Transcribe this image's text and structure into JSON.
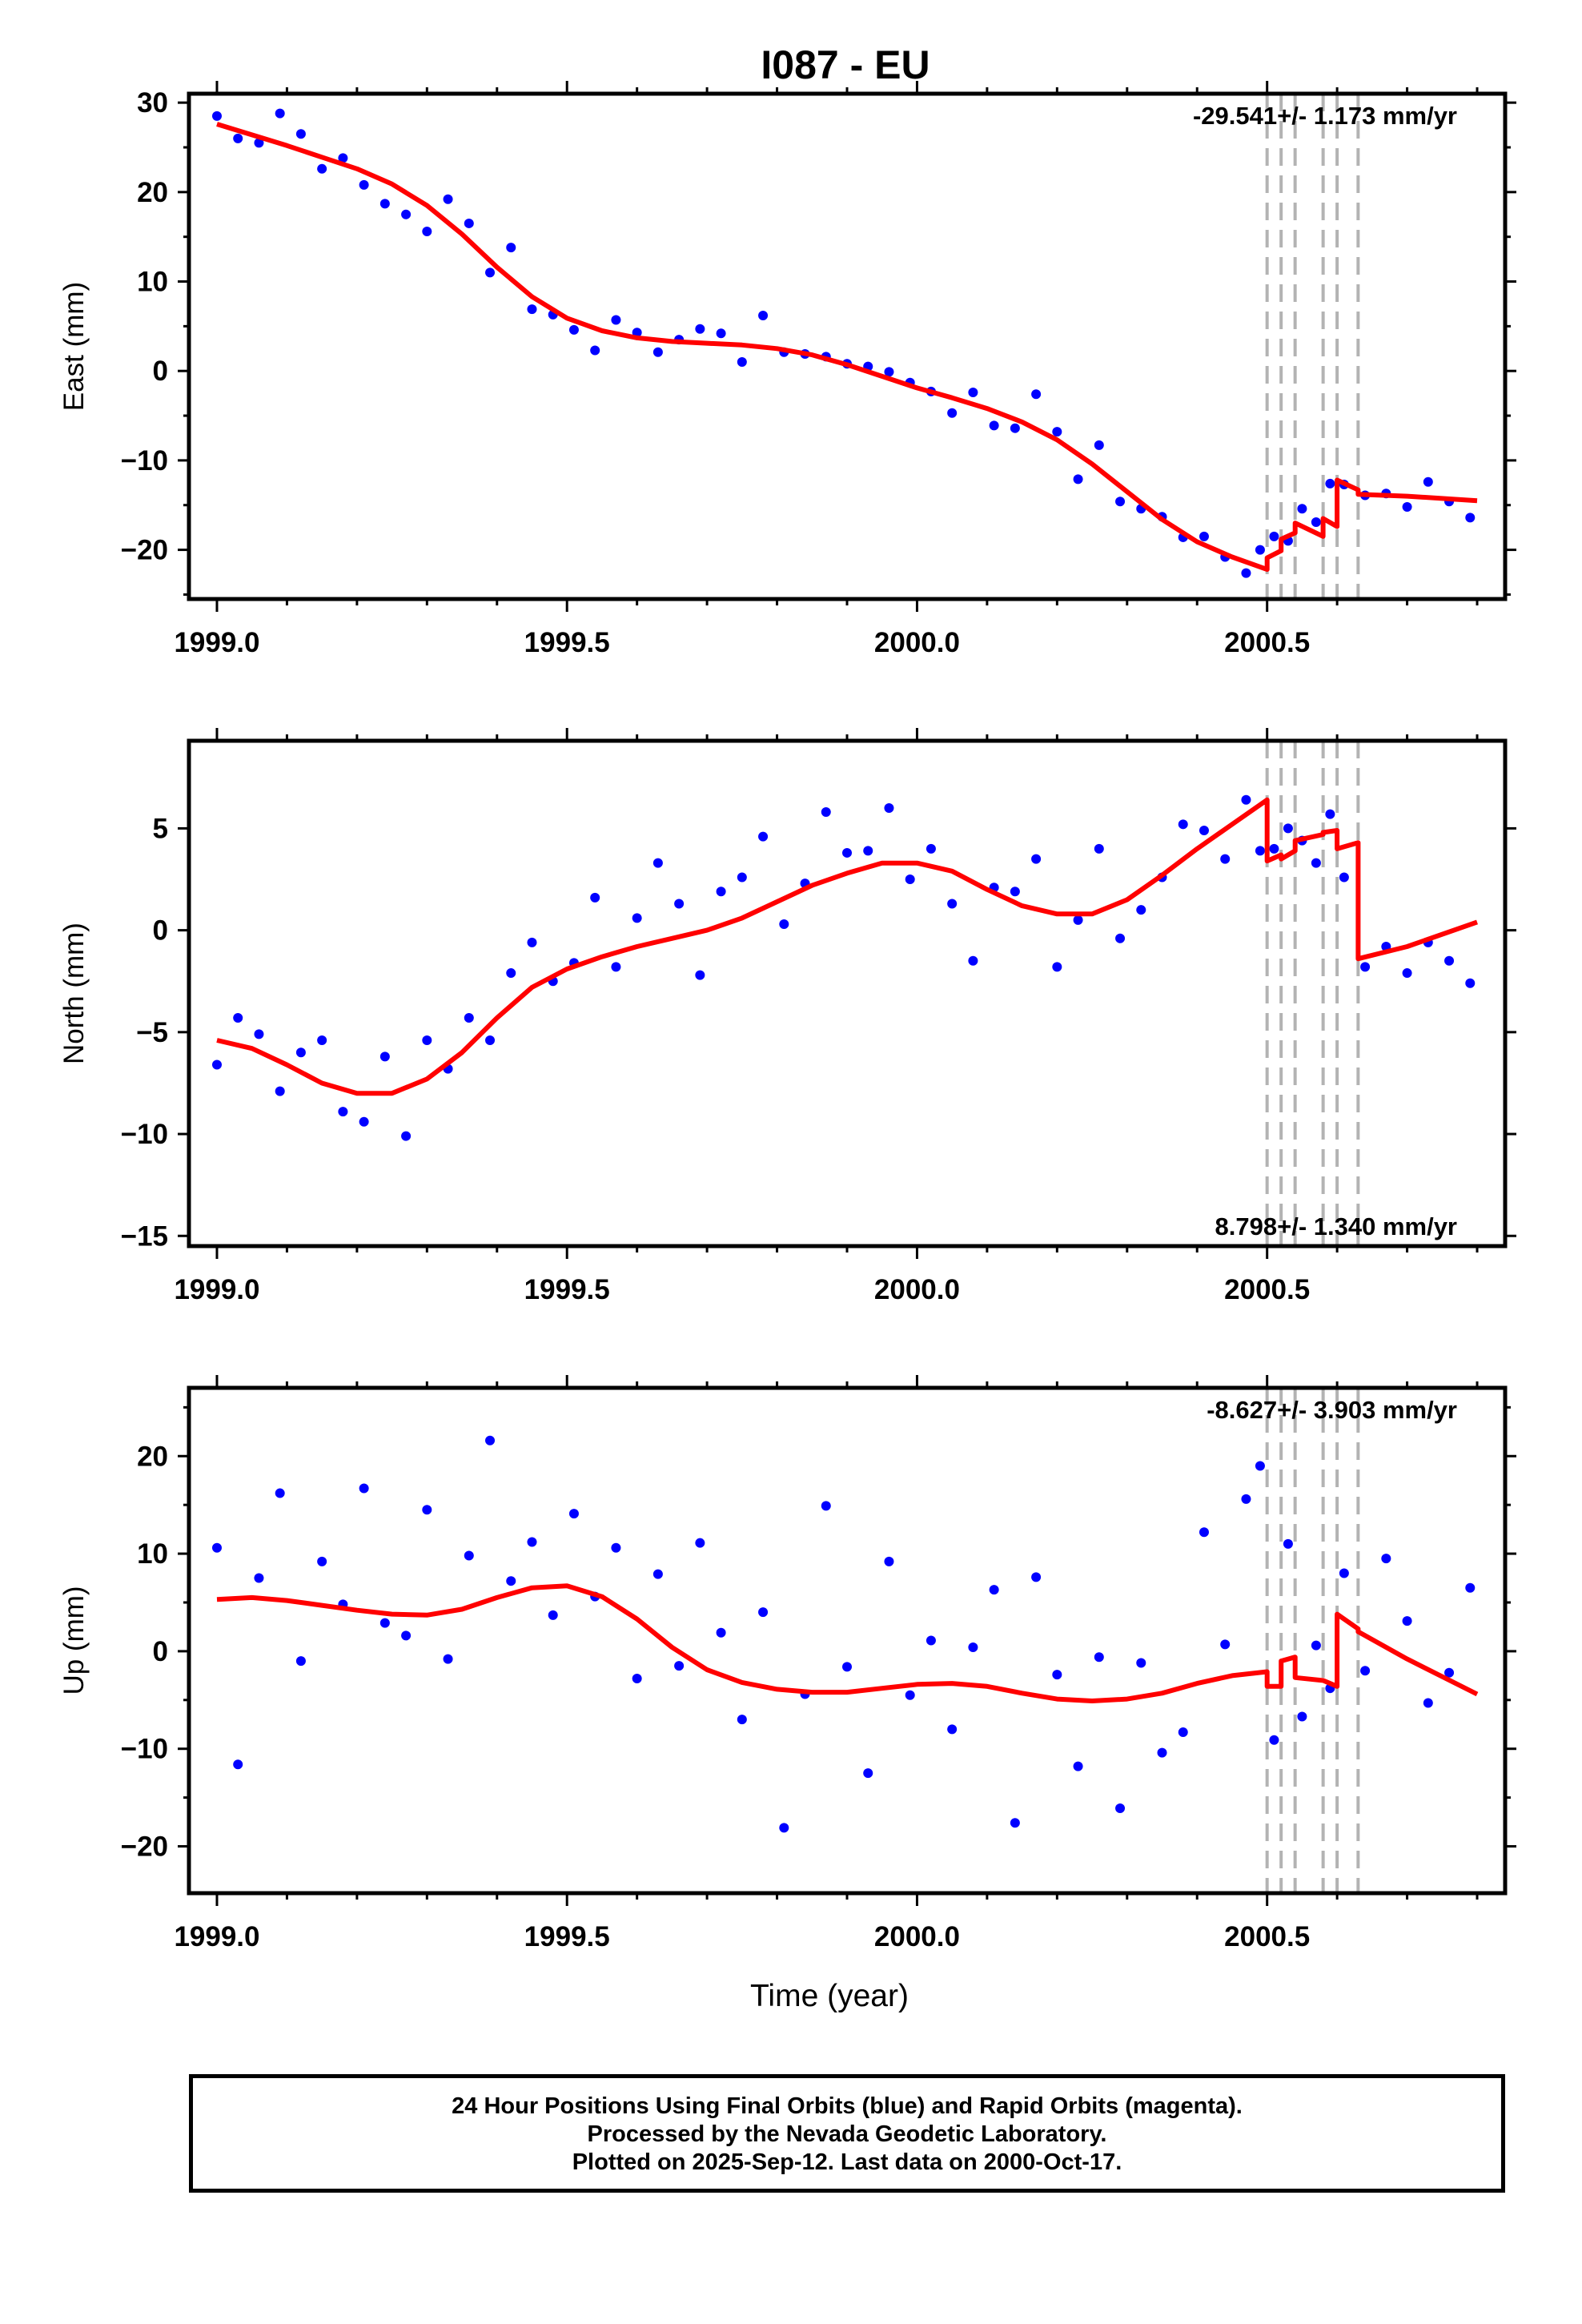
{
  "title": "I087 - EU",
  "colors": {
    "final_orbits": "#0000ff",
    "model_fit": "#ff0000",
    "offset_lines": "#b3b3b3",
    "axes": "#000000"
  },
  "chart_data": [
    {
      "type": "scatter",
      "ylabel": "East (mm)",
      "xlabel": "",
      "xlim": [
        1998.96,
        2000.84
      ],
      "ylim": [
        -25.5,
        31.0
      ],
      "xticks": [
        "1999.0",
        "1999.5",
        "2000.0",
        "2000.5"
      ],
      "yticks": [
        "30",
        "20",
        "10",
        "0",
        "−10",
        "−20"
      ],
      "ytick_values": [
        30,
        20,
        10,
        0,
        -10,
        -20
      ],
      "rate_label": "-29.541+/- 1.173 mm/yr",
      "rate_label_position": "top-right",
      "offset_lines_x": [
        2000.5,
        2000.52,
        2000.54,
        2000.58,
        2000.6,
        2000.63
      ],
      "model": [
        [
          1999.0,
          27.6
        ],
        [
          1999.05,
          26.4
        ],
        [
          1999.1,
          25.2
        ],
        [
          1999.15,
          23.9
        ],
        [
          1999.2,
          22.6
        ],
        [
          1999.25,
          20.9
        ],
        [
          1999.3,
          18.5
        ],
        [
          1999.35,
          15.3
        ],
        [
          1999.4,
          11.6
        ],
        [
          1999.45,
          8.3
        ],
        [
          1999.5,
          5.9
        ],
        [
          1999.55,
          4.5
        ],
        [
          1999.6,
          3.7
        ],
        [
          1999.65,
          3.3
        ],
        [
          1999.7,
          3.1
        ],
        [
          1999.75,
          2.9
        ],
        [
          1999.8,
          2.5
        ],
        [
          1999.85,
          1.8
        ],
        [
          1999.9,
          0.7
        ],
        [
          1999.95,
          -0.6
        ],
        [
          2000.0,
          -1.9
        ],
        [
          2000.05,
          -3.0
        ],
        [
          2000.1,
          -4.2
        ],
        [
          2000.15,
          -5.7
        ],
        [
          2000.2,
          -7.7
        ],
        [
          2000.25,
          -10.4
        ],
        [
          2000.3,
          -13.5
        ],
        [
          2000.35,
          -16.6
        ],
        [
          2000.4,
          -19.1
        ],
        [
          2000.45,
          -20.8
        ],
        [
          2000.5,
          -22.2
        ],
        [
          2000.5,
          -20.9
        ],
        [
          2000.52,
          -20.1
        ],
        [
          2000.52,
          -18.8
        ],
        [
          2000.54,
          -18.1
        ],
        [
          2000.54,
          -17.0
        ],
        [
          2000.58,
          -18.5
        ],
        [
          2000.58,
          -16.5
        ],
        [
          2000.6,
          -17.4
        ],
        [
          2000.6,
          -12.2
        ],
        [
          2000.63,
          -13.3
        ],
        [
          2000.63,
          -13.8
        ],
        [
          2000.7,
          -14.0
        ],
        [
          2000.8,
          -14.5
        ]
      ],
      "series": [
        {
          "name": "",
          "x": [
            1999.0,
            1999.03,
            1999.06,
            1999.09,
            1999.12,
            1999.15,
            1999.18,
            1999.21,
            1999.24,
            1999.27,
            1999.3,
            1999.33,
            1999.36,
            1999.39,
            1999.42,
            1999.45,
            1999.48,
            1999.51,
            1999.54,
            1999.57,
            1999.6,
            1999.63,
            1999.66,
            1999.69,
            1999.72,
            1999.75,
            1999.78,
            1999.81,
            1999.84,
            1999.87,
            1999.9,
            1999.93,
            1999.96,
            1999.99,
            2000.02,
            2000.05,
            2000.08,
            2000.11,
            2000.14,
            2000.17,
            2000.2,
            2000.23,
            2000.26,
            2000.29,
            2000.32,
            2000.35,
            2000.38,
            2000.41,
            2000.44,
            2000.47,
            2000.49,
            2000.51,
            2000.53,
            2000.55,
            2000.57,
            2000.59,
            2000.61,
            2000.64,
            2000.67,
            2000.7,
            2000.73,
            2000.76,
            2000.79
          ],
          "values": [
            28.5,
            26.0,
            25.5,
            28.8,
            26.5,
            22.6,
            23.8,
            20.8,
            18.7,
            17.5,
            15.6,
            19.2,
            16.5,
            11.0,
            13.8,
            6.9,
            6.3,
            4.6,
            2.3,
            5.7,
            4.3,
            2.1,
            3.5,
            4.7,
            4.2,
            1.0,
            6.2,
            2.1,
            1.9,
            1.6,
            0.8,
            0.5,
            -0.1,
            -1.3,
            -2.3,
            -4.7,
            -2.4,
            -6.1,
            -6.4,
            -2.6,
            -6.8,
            -12.1,
            -8.3,
            -14.6,
            -15.4,
            -16.3,
            -18.6,
            -18.5,
            -20.8,
            -22.6,
            -20.0,
            -18.5,
            -19.0,
            -15.4,
            -16.9,
            -12.6,
            -12.7,
            -13.9,
            -13.7,
            -15.2,
            -12.4,
            -14.6,
            -16.4
          ]
        }
      ]
    },
    {
      "type": "scatter",
      "ylabel": "North (mm)",
      "xlabel": "",
      "xlim": [
        1998.96,
        2000.84
      ],
      "ylim": [
        -15.5,
        9.3
      ],
      "xticks": [
        "1999.0",
        "1999.5",
        "2000.0",
        "2000.5"
      ],
      "yticks": [
        "5",
        "0",
        "−5",
        "−10",
        "−15"
      ],
      "ytick_values": [
        5,
        0,
        -5,
        -10,
        -15
      ],
      "rate_label": "8.798+/- 1.340 mm/yr",
      "rate_label_position": "bottom-right",
      "offset_lines_x": [
        2000.5,
        2000.52,
        2000.54,
        2000.58,
        2000.6,
        2000.63
      ],
      "model": [
        [
          1999.0,
          -5.4
        ],
        [
          1999.05,
          -5.8
        ],
        [
          1999.1,
          -6.6
        ],
        [
          1999.15,
          -7.5
        ],
        [
          1999.2,
          -8.0
        ],
        [
          1999.25,
          -8.0
        ],
        [
          1999.3,
          -7.3
        ],
        [
          1999.35,
          -6.0
        ],
        [
          1999.4,
          -4.3
        ],
        [
          1999.45,
          -2.8
        ],
        [
          1999.5,
          -1.9
        ],
        [
          1999.55,
          -1.3
        ],
        [
          1999.6,
          -0.8
        ],
        [
          1999.65,
          -0.4
        ],
        [
          1999.7,
          0.0
        ],
        [
          1999.75,
          0.6
        ],
        [
          1999.8,
          1.4
        ],
        [
          1999.85,
          2.2
        ],
        [
          1999.9,
          2.8
        ],
        [
          1999.95,
          3.3
        ],
        [
          2000.0,
          3.3
        ],
        [
          2000.05,
          2.9
        ],
        [
          2000.1,
          2.0
        ],
        [
          2000.15,
          1.2
        ],
        [
          2000.2,
          0.8
        ],
        [
          2000.25,
          0.8
        ],
        [
          2000.3,
          1.5
        ],
        [
          2000.35,
          2.7
        ],
        [
          2000.4,
          4.0
        ],
        [
          2000.45,
          5.2
        ],
        [
          2000.5,
          6.4
        ],
        [
          2000.5,
          3.4
        ],
        [
          2000.52,
          3.7
        ],
        [
          2000.52,
          3.5
        ],
        [
          2000.54,
          3.9
        ],
        [
          2000.54,
          4.4
        ],
        [
          2000.58,
          4.7
        ],
        [
          2000.58,
          4.8
        ],
        [
          2000.6,
          4.9
        ],
        [
          2000.6,
          4.0
        ],
        [
          2000.63,
          4.3
        ],
        [
          2000.63,
          -1.4
        ],
        [
          2000.7,
          -0.8
        ],
        [
          2000.8,
          0.4
        ]
      ],
      "series": [
        {
          "name": "",
          "x": [
            1999.0,
            1999.03,
            1999.06,
            1999.09,
            1999.12,
            1999.15,
            1999.18,
            1999.21,
            1999.24,
            1999.27,
            1999.3,
            1999.33,
            1999.36,
            1999.39,
            1999.42,
            1999.45,
            1999.48,
            1999.51,
            1999.54,
            1999.57,
            1999.6,
            1999.63,
            1999.66,
            1999.69,
            1999.72,
            1999.75,
            1999.78,
            1999.81,
            1999.84,
            1999.87,
            1999.9,
            1999.93,
            1999.96,
            1999.99,
            2000.02,
            2000.05,
            2000.08,
            2000.11,
            2000.14,
            2000.17,
            2000.2,
            2000.23,
            2000.26,
            2000.29,
            2000.32,
            2000.35,
            2000.38,
            2000.41,
            2000.44,
            2000.47,
            2000.49,
            2000.51,
            2000.53,
            2000.55,
            2000.57,
            2000.59,
            2000.61,
            2000.64,
            2000.67,
            2000.7,
            2000.73,
            2000.76,
            2000.79
          ],
          "values": [
            -6.6,
            -4.3,
            -5.1,
            -7.9,
            -6.0,
            -5.4,
            -8.9,
            -9.4,
            -6.2,
            -10.1,
            -5.4,
            -6.8,
            -4.3,
            -5.4,
            -2.1,
            -0.6,
            -2.5,
            -1.6,
            1.6,
            -1.8,
            0.6,
            3.3,
            1.3,
            -2.2,
            1.9,
            2.6,
            4.6,
            0.3,
            2.3,
            5.8,
            3.8,
            3.9,
            6.0,
            2.5,
            4.0,
            1.3,
            -1.5,
            2.1,
            1.9,
            3.5,
            -1.8,
            0.5,
            4.0,
            -0.4,
            1.0,
            2.6,
            5.2,
            4.9,
            3.5,
            6.4,
            3.9,
            4.0,
            5.0,
            4.4,
            3.3,
            5.7,
            2.6,
            -1.8,
            -0.8,
            -2.1,
            -0.6,
            -1.5,
            -2.6
          ]
        }
      ]
    },
    {
      "type": "scatter",
      "ylabel": "Up (mm)",
      "xlabel": "Time (year)",
      "xlim": [
        1998.96,
        2000.84
      ],
      "ylim": [
        -24.8,
        27.0
      ],
      "xticks": [
        "1999.0",
        "1999.5",
        "2000.0",
        "2000.5"
      ],
      "yticks": [
        "20",
        "10",
        "0",
        "−10",
        "−20"
      ],
      "ytick_values": [
        20,
        10,
        0,
        -10,
        -20
      ],
      "rate_label": "-8.627+/- 3.903 mm/yr",
      "rate_label_position": "top-right",
      "offset_lines_x": [
        2000.5,
        2000.52,
        2000.54,
        2000.58,
        2000.6,
        2000.63
      ],
      "model": [
        [
          1999.0,
          5.3
        ],
        [
          1999.05,
          5.5
        ],
        [
          1999.1,
          5.2
        ],
        [
          1999.15,
          4.7
        ],
        [
          1999.2,
          4.2
        ],
        [
          1999.25,
          3.8
        ],
        [
          1999.3,
          3.7
        ],
        [
          1999.35,
          4.3
        ],
        [
          1999.4,
          5.5
        ],
        [
          1999.45,
          6.5
        ],
        [
          1999.5,
          6.7
        ],
        [
          1999.55,
          5.6
        ],
        [
          1999.6,
          3.3
        ],
        [
          1999.65,
          0.4
        ],
        [
          1999.7,
          -1.9
        ],
        [
          1999.75,
          -3.2
        ],
        [
          1999.8,
          -3.9
        ],
        [
          1999.85,
          -4.2
        ],
        [
          1999.9,
          -4.2
        ],
        [
          1999.95,
          -3.8
        ],
        [
          2000.0,
          -3.4
        ],
        [
          2000.05,
          -3.3
        ],
        [
          2000.1,
          -3.6
        ],
        [
          2000.15,
          -4.3
        ],
        [
          2000.2,
          -4.9
        ],
        [
          2000.25,
          -5.1
        ],
        [
          2000.3,
          -4.9
        ],
        [
          2000.35,
          -4.3
        ],
        [
          2000.4,
          -3.3
        ],
        [
          2000.45,
          -2.5
        ],
        [
          2000.5,
          -2.1
        ],
        [
          2000.5,
          -3.6
        ],
        [
          2000.52,
          -3.6
        ],
        [
          2000.52,
          -1.0
        ],
        [
          2000.54,
          -0.6
        ],
        [
          2000.54,
          -2.7
        ],
        [
          2000.58,
          -3.0
        ],
        [
          2000.58,
          -3.0
        ],
        [
          2000.6,
          -3.6
        ],
        [
          2000.6,
          3.8
        ],
        [
          2000.63,
          2.3
        ],
        [
          2000.63,
          2.0
        ],
        [
          2000.7,
          -0.8
        ],
        [
          2000.8,
          -4.4
        ]
      ],
      "series": [
        {
          "name": "",
          "x": [
            1999.0,
            1999.03,
            1999.06,
            1999.09,
            1999.12,
            1999.15,
            1999.18,
            1999.21,
            1999.24,
            1999.27,
            1999.3,
            1999.33,
            1999.36,
            1999.39,
            1999.42,
            1999.45,
            1999.48,
            1999.51,
            1999.54,
            1999.57,
            1999.6,
            1999.63,
            1999.66,
            1999.69,
            1999.72,
            1999.75,
            1999.78,
            1999.81,
            1999.84,
            1999.87,
            1999.9,
            1999.93,
            1999.96,
            1999.99,
            2000.02,
            2000.05,
            2000.08,
            2000.11,
            2000.14,
            2000.17,
            2000.2,
            2000.23,
            2000.26,
            2000.29,
            2000.32,
            2000.35,
            2000.38,
            2000.41,
            2000.44,
            2000.47,
            2000.49,
            2000.51,
            2000.53,
            2000.55,
            2000.57,
            2000.59,
            2000.61,
            2000.64,
            2000.67,
            2000.7,
            2000.73,
            2000.76,
            2000.79
          ],
          "values": [
            10.6,
            -11.6,
            7.5,
            16.2,
            -1.0,
            9.2,
            4.8,
            16.7,
            2.9,
            1.6,
            14.5,
            -0.8,
            9.8,
            21.6,
            7.2,
            11.2,
            3.7,
            14.1,
            5.6,
            10.6,
            -2.8,
            7.9,
            -1.5,
            11.1,
            1.9,
            -7.0,
            4.0,
            -18.1,
            -4.4,
            14.9,
            -1.6,
            -12.5,
            9.2,
            -4.5,
            1.1,
            -8.0,
            0.4,
            6.3,
            -17.6,
            7.6,
            -2.4,
            -11.8,
            -0.6,
            -16.1,
            -1.2,
            -10.4,
            -8.3,
            12.2,
            0.7,
            15.6,
            19.0,
            -9.1,
            11.0,
            -6.7,
            0.6,
            -3.8,
            8.0,
            -2.0,
            9.5,
            3.1,
            -5.3,
            -2.2,
            6.5
          ]
        }
      ]
    }
  ],
  "footer": {
    "line1": "24 Hour Positions Using Final Orbits (blue) and Rapid Orbits (magenta).",
    "line2": "Processed by the Nevada Geodetic Laboratory.",
    "line3": "Plotted on 2025-Sep-12. Last data on 2000-Oct-17."
  }
}
